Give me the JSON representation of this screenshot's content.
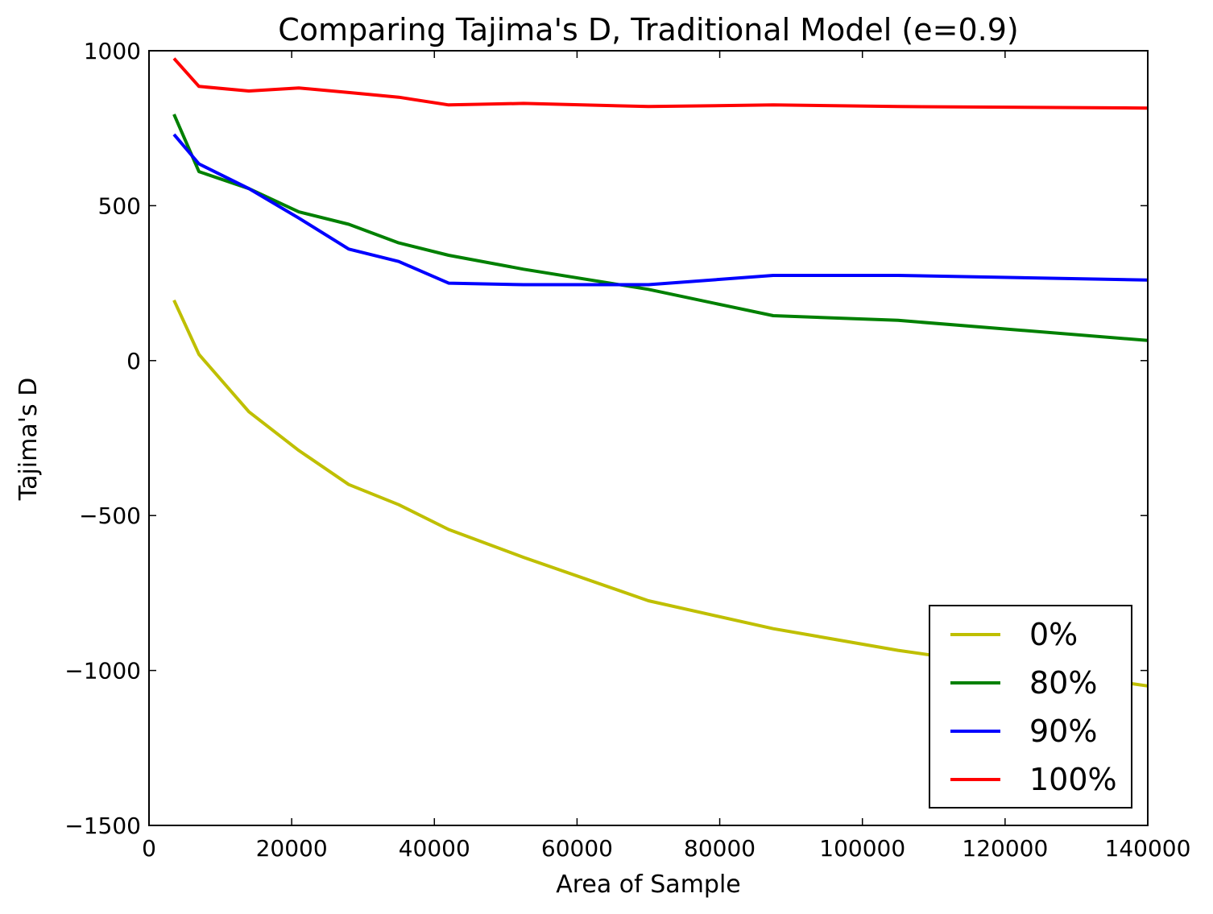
{
  "chart_data": {
    "type": "line",
    "title": "Comparing Tajima's D, Traditional Model (e=0.9)",
    "xlabel": "Area of Sample",
    "ylabel": "Tajima's D",
    "xlim": [
      0,
      140000
    ],
    "ylim": [
      -1500,
      1000
    ],
    "xticks": [
      0,
      20000,
      40000,
      60000,
      80000,
      100000,
      120000,
      140000
    ],
    "xtick_labels": [
      "0",
      "20000",
      "40000",
      "60000",
      "80000",
      "100000",
      "120000",
      "140000"
    ],
    "yticks": [
      -1500,
      -1000,
      -500,
      0,
      500,
      1000
    ],
    "ytick_labels": [
      "−1500",
      "−1000",
      "−500",
      "0",
      "500",
      "1000"
    ],
    "grid": false,
    "legend_position": "lower-right",
    "x": [
      3500,
      7000,
      14000,
      21000,
      28000,
      35000,
      42000,
      52500,
      70000,
      87500,
      105000,
      140000
    ],
    "series": [
      {
        "name": "0%",
        "color": "#bfbf00",
        "values": [
          195,
          20,
          -165,
          -290,
          -400,
          -465,
          -545,
          -635,
          -775,
          -865,
          -935,
          -1050
        ]
      },
      {
        "name": "80%",
        "color": "#008000",
        "values": [
          795,
          610,
          555,
          480,
          440,
          380,
          340,
          295,
          230,
          145,
          130,
          65
        ]
      },
      {
        "name": "90%",
        "color": "#0000ff",
        "values": [
          730,
          635,
          555,
          460,
          360,
          320,
          250,
          245,
          245,
          275,
          275,
          260
        ]
      },
      {
        "name": "100%",
        "color": "#ff0000",
        "values": [
          975,
          885,
          870,
          880,
          865,
          850,
          825,
          830,
          820,
          825,
          820,
          815
        ]
      }
    ]
  }
}
